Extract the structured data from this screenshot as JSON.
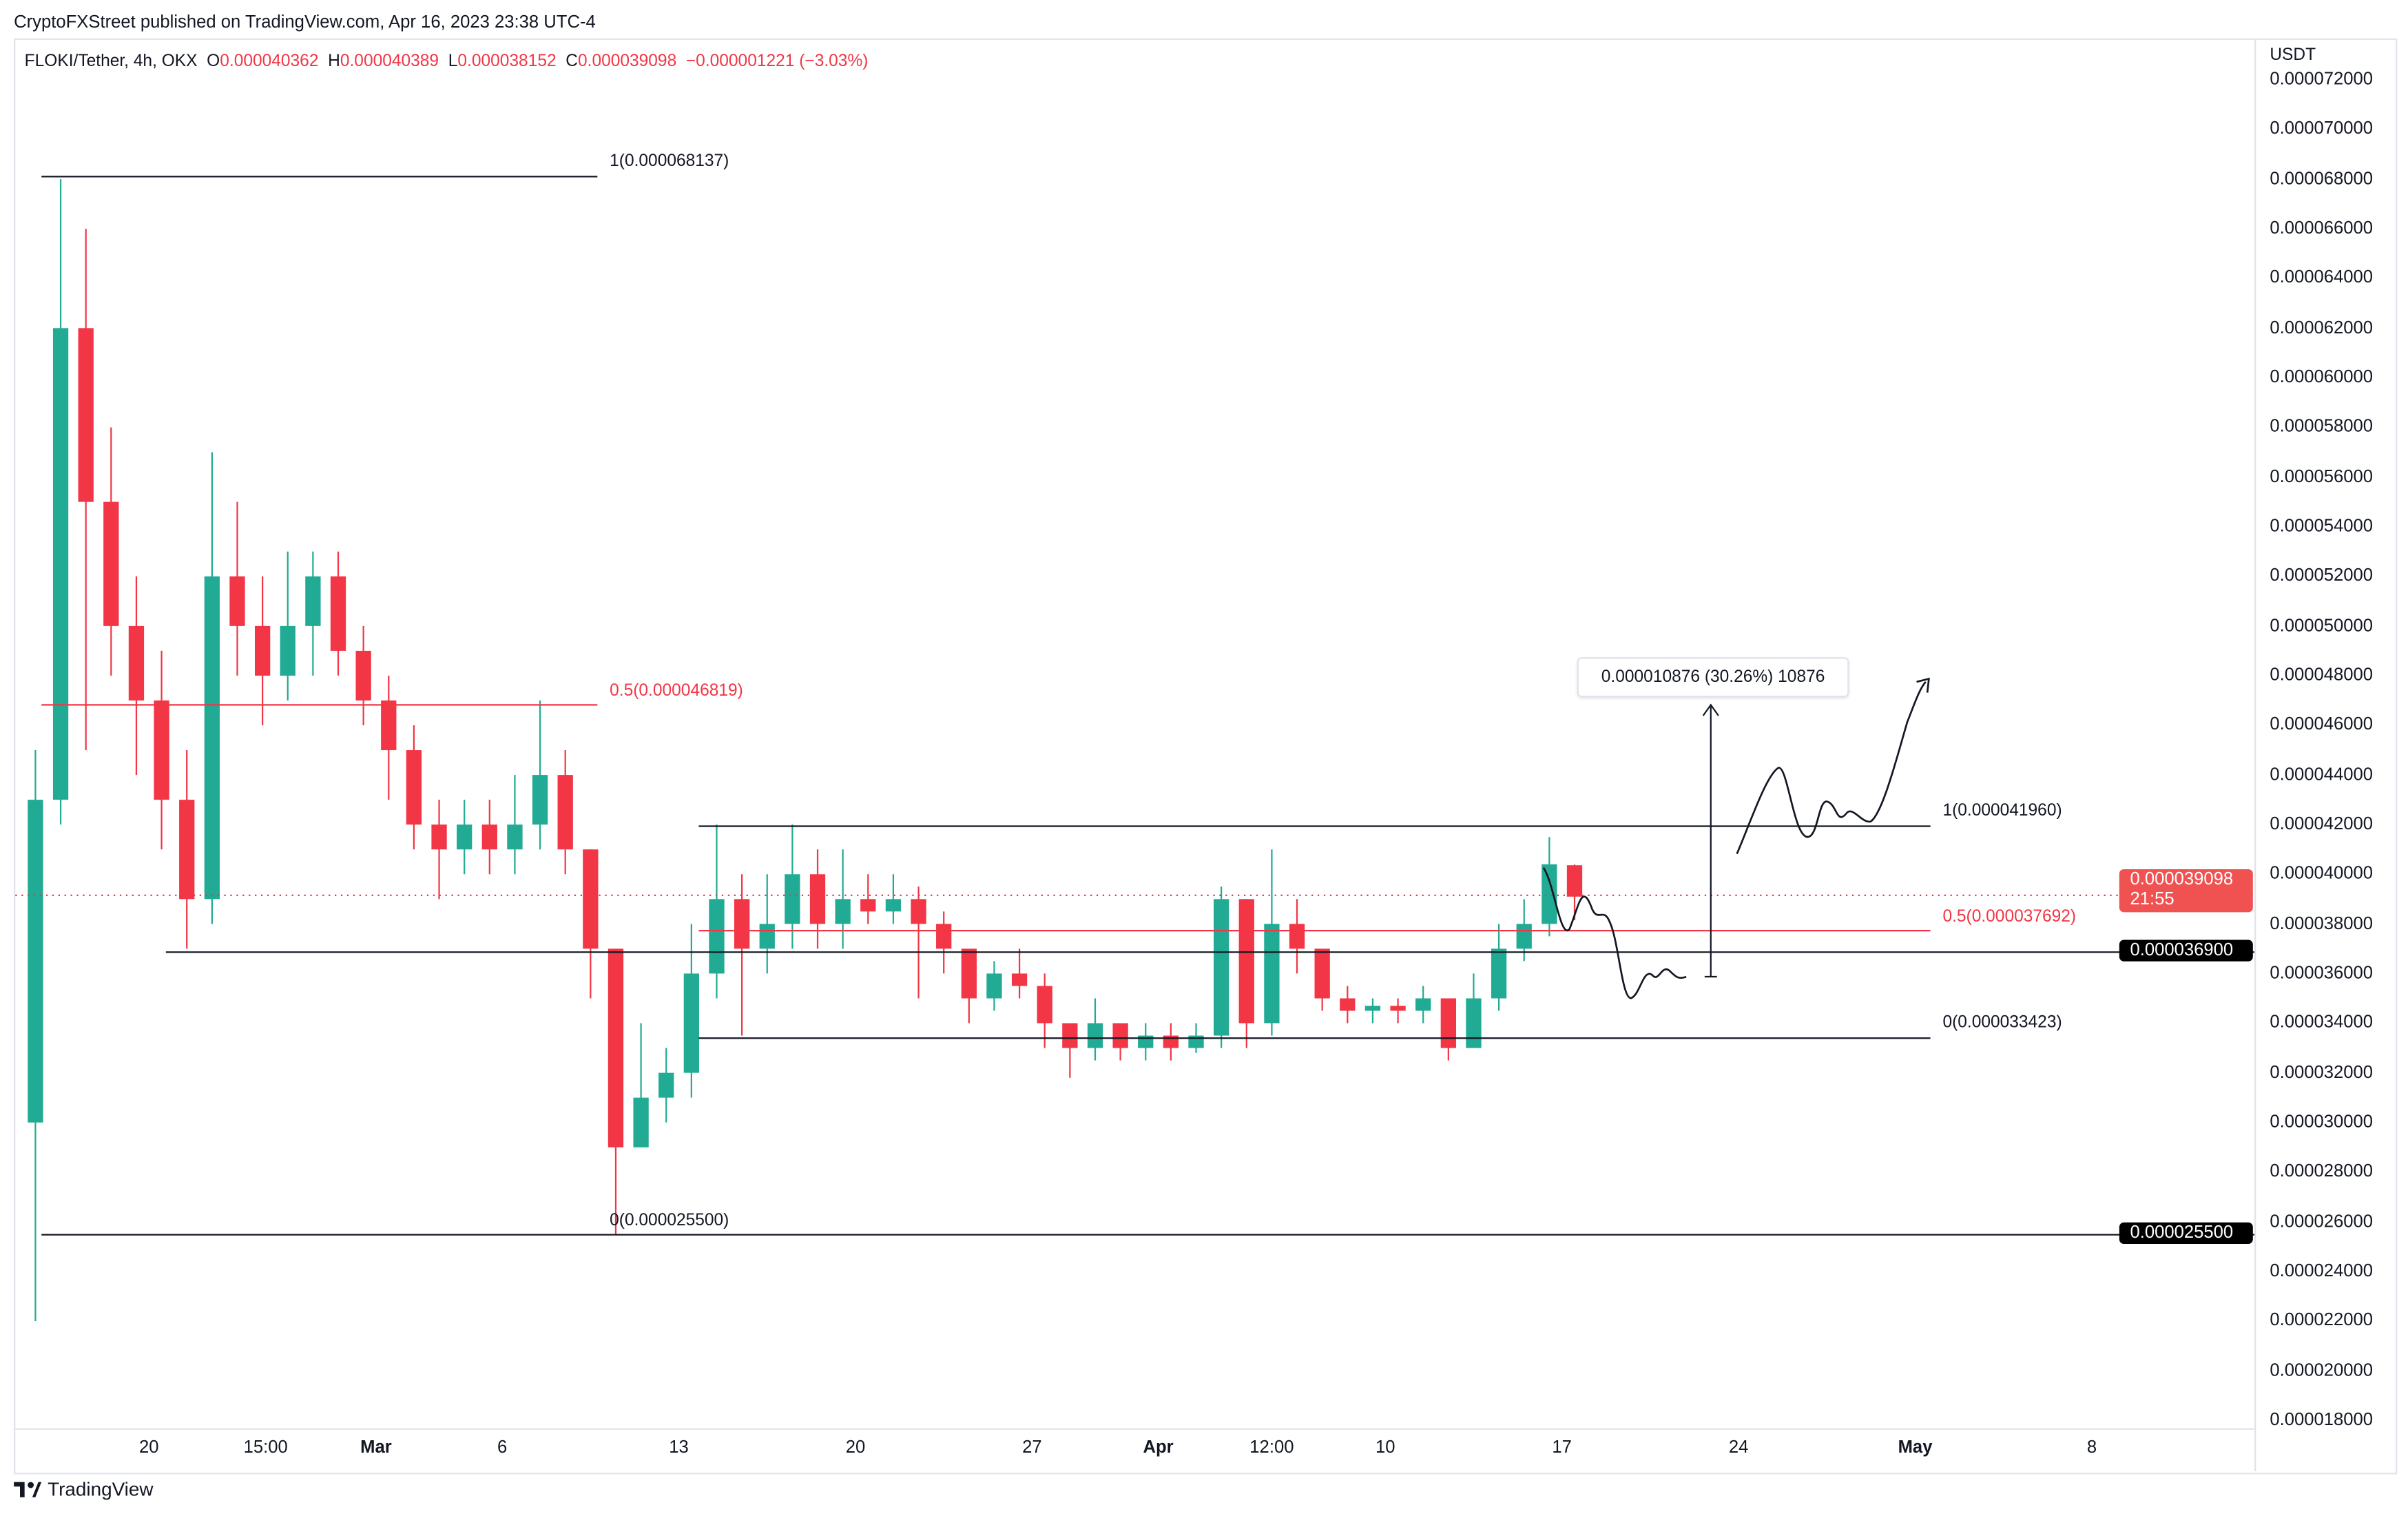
{
  "header": {
    "published": "CryptoFXStreet published on TradingView.com, Apr 16, 2023 23:38 UTC-4",
    "symbol": "FLOKI/Tether, 4h, OKX",
    "o_label": "O",
    "o": "0.000040362",
    "h_label": "H",
    "h": "0.000040389",
    "l_label": "L",
    "l": "0.000038152",
    "c_label": "C",
    "c": "0.000039098",
    "change": "−0.000001221 (−3.03%)"
  },
  "axis": {
    "unit": "USDT",
    "y_ticks": [
      "0.000072000",
      "0.000070000",
      "0.000068000",
      "0.000066000",
      "0.000064000",
      "0.000062000",
      "0.000060000",
      "0.000058000",
      "0.000056000",
      "0.000054000",
      "0.000052000",
      "0.000050000",
      "0.000048000",
      "0.000046000",
      "0.000044000",
      "0.000042000",
      "0.000040000",
      "0.000038000",
      "0.000036000",
      "0.000034000",
      "0.000032000",
      "0.000030000",
      "0.000028000",
      "0.000026000",
      "0.000024000",
      "0.000022000",
      "0.000020000",
      "0.000018000"
    ],
    "x_ticks": [
      {
        "label": "20",
        "date": "2023-02-20T00:00"
      },
      {
        "label": "15:00",
        "date": "2023-02-24T15:00"
      },
      {
        "label": "Mar",
        "date": "2023-03-01T00:00",
        "bold": true
      },
      {
        "label": "6",
        "date": "2023-03-06T00:00"
      },
      {
        "label": "13",
        "date": "2023-03-13T00:00"
      },
      {
        "label": "20",
        "date": "2023-03-20T00:00"
      },
      {
        "label": "27",
        "date": "2023-03-27T00:00"
      },
      {
        "label": "Apr",
        "date": "2023-04-01T00:00",
        "bold": true
      },
      {
        "label": "12:00",
        "date": "2023-04-05T12:00"
      },
      {
        "label": "10",
        "date": "2023-04-10T00:00"
      },
      {
        "label": "17",
        "date": "2023-04-17T00:00"
      },
      {
        "label": "24",
        "date": "2023-04-24T00:00"
      },
      {
        "label": "May",
        "date": "2023-05-01T00:00",
        "bold": true
      },
      {
        "label": "8",
        "date": "2023-05-08T00:00"
      }
    ]
  },
  "price_tags": {
    "last_price": "0.000039098",
    "countdown": "21:55",
    "level_1": "0.000036900",
    "level_2": "0.000025500"
  },
  "drawings": {
    "fib1_top": "1(0.000068137)",
    "fib1_mid": "0.5(0.000046819)",
    "fib1_bottom": "0(0.000025500)",
    "fib2_top": "1(0.000041960)",
    "fib2_mid": "0.5(0.000037692)",
    "fib2_bottom": "0(0.000033423)",
    "measure": "0.000010876 (30.26%) 10876"
  },
  "footer": {
    "logo": "TradingView"
  },
  "colors": {
    "up": "#22ab94",
    "down": "#f23645",
    "fib_mid": "#f23645",
    "line": "#131722"
  },
  "chart_data": {
    "type": "candlestick",
    "title": "FLOKI/Tether, 4h, OKX",
    "ylabel": "USDT",
    "ylim": [
      1.7e-05,
      7.3e-05
    ],
    "grid": false,
    "candles_note_fields": [
      "date",
      "open",
      "high",
      "low",
      "close"
    ],
    "candles": [
      [
        "2023-02-15",
        3e-05,
        4.5e-05,
        2.2e-05,
        4.3e-05
      ],
      [
        "2023-02-16",
        4.3e-05,
        6.8e-05,
        4.2e-05,
        6.2e-05
      ],
      [
        "2023-02-17",
        6.2e-05,
        6.6e-05,
        4.5e-05,
        5.5e-05
      ],
      [
        "2023-02-18",
        5.5e-05,
        5.8e-05,
        4.8e-05,
        5e-05
      ],
      [
        "2023-02-19",
        5e-05,
        5.2e-05,
        4.4e-05,
        4.7e-05
      ],
      [
        "2023-02-20",
        4.7e-05,
        4.9e-05,
        4.1e-05,
        4.3e-05
      ],
      [
        "2023-02-21",
        4.3e-05,
        4.5e-05,
        3.7e-05,
        3.9e-05
      ],
      [
        "2023-02-22",
        3.9e-05,
        5.7e-05,
        3.8e-05,
        5.2e-05
      ],
      [
        "2023-02-23",
        5.2e-05,
        5.5e-05,
        4.8e-05,
        5e-05
      ],
      [
        "2023-02-24",
        5e-05,
        5.2e-05,
        4.6e-05,
        4.8e-05
      ],
      [
        "2023-02-25",
        4.8e-05,
        5.3e-05,
        4.7e-05,
        5e-05
      ],
      [
        "2023-02-26",
        5e-05,
        5.3e-05,
        4.8e-05,
        5.2e-05
      ],
      [
        "2023-02-27",
        5.2e-05,
        5.3e-05,
        4.8e-05,
        4.9e-05
      ],
      [
        "2023-02-28",
        4.9e-05,
        5e-05,
        4.6e-05,
        4.7e-05
      ],
      [
        "2023-03-01",
        4.7e-05,
        4.8e-05,
        4.3e-05,
        4.5e-05
      ],
      [
        "2023-03-02",
        4.5e-05,
        4.6e-05,
        4.1e-05,
        4.2e-05
      ],
      [
        "2023-03-03",
        4.2e-05,
        4.3e-05,
        3.9e-05,
        4.1e-05
      ],
      [
        "2023-03-04",
        4.1e-05,
        4.3e-05,
        4e-05,
        4.2e-05
      ],
      [
        "2023-03-05",
        4.2e-05,
        4.3e-05,
        4e-05,
        4.1e-05
      ],
      [
        "2023-03-06",
        4.1e-05,
        4.4e-05,
        4e-05,
        4.2e-05
      ],
      [
        "2023-03-07",
        4.2e-05,
        4.7e-05,
        4.1e-05,
        4.4e-05
      ],
      [
        "2023-03-08",
        4.4e-05,
        4.5e-05,
        4e-05,
        4.1e-05
      ],
      [
        "2023-03-09",
        4.1e-05,
        4.1e-05,
        3.5e-05,
        3.7e-05
      ],
      [
        "2023-03-10",
        3.7e-05,
        3.7e-05,
        2.55e-05,
        2.9e-05
      ],
      [
        "2023-03-11",
        2.9e-05,
        3.4e-05,
        2.9e-05,
        3.1e-05
      ],
      [
        "2023-03-12",
        3.1e-05,
        3.3e-05,
        3e-05,
        3.2e-05
      ],
      [
        "2023-03-13",
        3.2e-05,
        3.8e-05,
        3.1e-05,
        3.6e-05
      ],
      [
        "2023-03-14",
        3.6e-05,
        4.2e-05,
        3.5e-05,
        3.9e-05
      ],
      [
        "2023-03-15",
        3.9e-05,
        4e-05,
        3.35e-05,
        3.7e-05
      ],
      [
        "2023-03-16",
        3.7e-05,
        4e-05,
        3.6e-05,
        3.8e-05
      ],
      [
        "2023-03-17",
        3.8e-05,
        4.2e-05,
        3.7e-05,
        4e-05
      ],
      [
        "2023-03-18",
        4e-05,
        4.1e-05,
        3.7e-05,
        3.8e-05
      ],
      [
        "2023-03-19",
        3.8e-05,
        4.1e-05,
        3.7e-05,
        3.9e-05
      ],
      [
        "2023-03-20",
        3.9e-05,
        4e-05,
        3.8e-05,
        3.85e-05
      ],
      [
        "2023-03-21",
        3.85e-05,
        4e-05,
        3.8e-05,
        3.9e-05
      ],
      [
        "2023-03-22",
        3.9e-05,
        3.95e-05,
        3.5e-05,
        3.8e-05
      ],
      [
        "2023-03-23",
        3.8e-05,
        3.85e-05,
        3.6e-05,
        3.7e-05
      ],
      [
        "2023-03-24",
        3.7e-05,
        3.7e-05,
        3.4e-05,
        3.5e-05
      ],
      [
        "2023-03-25",
        3.5e-05,
        3.65e-05,
        3.45e-05,
        3.6e-05
      ],
      [
        "2023-03-26",
        3.6e-05,
        3.7e-05,
        3.5e-05,
        3.55e-05
      ],
      [
        "2023-03-27",
        3.55e-05,
        3.6e-05,
        3.3e-05,
        3.4e-05
      ],
      [
        "2023-03-28",
        3.4e-05,
        3.4e-05,
        3.18e-05,
        3.3e-05
      ],
      [
        "2023-03-29",
        3.3e-05,
        3.5e-05,
        3.25e-05,
        3.4e-05
      ],
      [
        "2023-03-30",
        3.4e-05,
        3.4e-05,
        3.25e-05,
        3.3e-05
      ],
      [
        "2023-03-31",
        3.3e-05,
        3.4e-05,
        3.25e-05,
        3.35e-05
      ],
      [
        "2023-04-01",
        3.35e-05,
        3.4e-05,
        3.25e-05,
        3.3e-05
      ],
      [
        "2023-04-02",
        3.3e-05,
        3.4e-05,
        3.28e-05,
        3.35e-05
      ],
      [
        "2023-04-03",
        3.35e-05,
        3.95e-05,
        3.3e-05,
        3.9e-05
      ],
      [
        "2023-04-04",
        3.9e-05,
        3.9e-05,
        3.3e-05,
        3.4e-05
      ],
      [
        "2023-04-05",
        3.4e-05,
        4.1e-05,
        3.35e-05,
        3.8e-05
      ],
      [
        "2023-04-06",
        3.8e-05,
        3.9e-05,
        3.6e-05,
        3.7e-05
      ],
      [
        "2023-04-07",
        3.7e-05,
        3.7e-05,
        3.45e-05,
        3.5e-05
      ],
      [
        "2023-04-08",
        3.5e-05,
        3.55e-05,
        3.4e-05,
        3.45e-05
      ],
      [
        "2023-04-09",
        3.45e-05,
        3.5e-05,
        3.4e-05,
        3.47e-05
      ],
      [
        "2023-04-10",
        3.47e-05,
        3.5e-05,
        3.4e-05,
        3.45e-05
      ],
      [
        "2023-04-11",
        3.45e-05,
        3.55e-05,
        3.4e-05,
        3.5e-05
      ],
      [
        "2023-04-12",
        3.5e-05,
        3.5e-05,
        3.25e-05,
        3.3e-05
      ],
      [
        "2023-04-13",
        3.3e-05,
        3.6e-05,
        3.3e-05,
        3.5e-05
      ],
      [
        "2023-04-14",
        3.5e-05,
        3.8e-05,
        3.45e-05,
        3.7e-05
      ],
      [
        "2023-04-15",
        3.7e-05,
        3.9e-05,
        3.65e-05,
        3.8e-05
      ],
      [
        "2023-04-16",
        3.8e-05,
        4.15e-05,
        3.75e-05,
        4.04e-05
      ],
      [
        "2023-04-17",
        4.0362e-05,
        4.0389e-05,
        3.8152e-05,
        3.9098e-05
      ]
    ]
  }
}
